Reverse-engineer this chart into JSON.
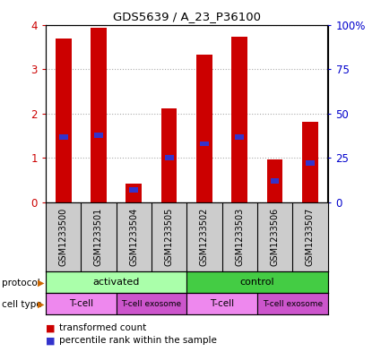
{
  "title": "GDS5639 / A_23_P36100",
  "samples": [
    "GSM1233500",
    "GSM1233501",
    "GSM1233504",
    "GSM1233505",
    "GSM1233502",
    "GSM1233503",
    "GSM1233506",
    "GSM1233507"
  ],
  "transformed_counts": [
    3.68,
    3.92,
    0.42,
    2.12,
    3.32,
    3.72,
    0.97,
    1.82
  ],
  "percentile_ranks_pct": [
    37,
    38,
    7,
    25,
    33,
    37,
    12,
    22
  ],
  "ylim": [
    0,
    4
  ],
  "y2lim": [
    0,
    100
  ],
  "yticks": [
    0,
    1,
    2,
    3,
    4
  ],
  "y2ticks": [
    0,
    25,
    50,
    75,
    100
  ],
  "bar_color": "#cc0000",
  "percentile_color": "#3333cc",
  "bar_width": 0.45,
  "percentile_bar_width": 0.25,
  "protocol_groups": [
    {
      "label": "activated",
      "start": 0,
      "end": 4,
      "color": "#aaffaa"
    },
    {
      "label": "control",
      "start": 4,
      "end": 8,
      "color": "#44cc44"
    }
  ],
  "cell_type_groups": [
    {
      "label": "T-cell",
      "start": 0,
      "end": 2,
      "color": "#ee88ee"
    },
    {
      "label": "T-cell exosome",
      "start": 2,
      "end": 4,
      "color": "#cc55cc"
    },
    {
      "label": "T-cell",
      "start": 4,
      "end": 6,
      "color": "#ee88ee"
    },
    {
      "label": "T-cell exosome",
      "start": 6,
      "end": 8,
      "color": "#cc55cc"
    }
  ],
  "tick_color_left": "#cc0000",
  "tick_color_right": "#0000cc",
  "grid_color": "#aaaaaa",
  "bg_color": "#cccccc",
  "plot_bg": "#ffffff",
  "arrow_color": "#cc6600"
}
